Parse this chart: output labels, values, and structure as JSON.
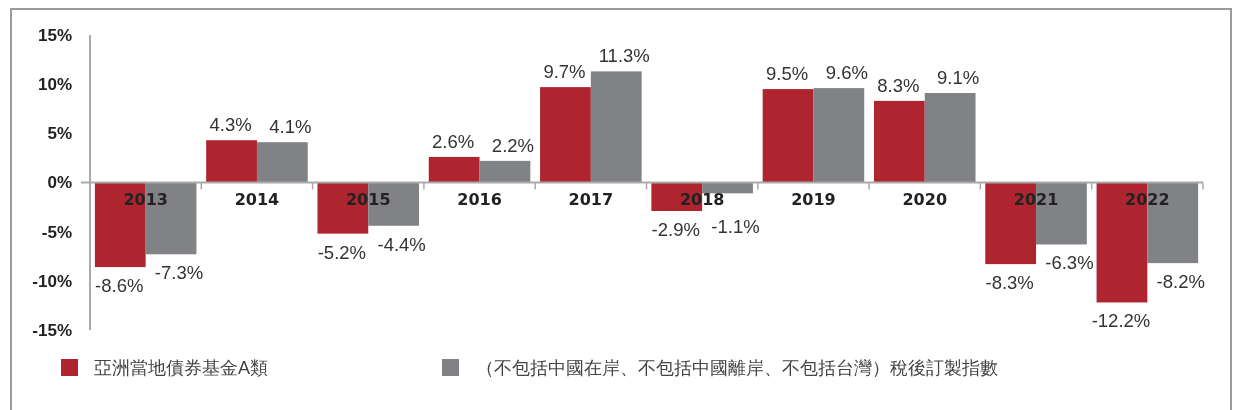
{
  "chart_data": {
    "type": "bar",
    "categories": [
      "2013",
      "2014",
      "2015",
      "2016",
      "2017",
      "2018",
      "2019",
      "2020",
      "2021",
      "2022"
    ],
    "series": [
      {
        "name": "亞洲當地債券基金A類",
        "color": "#ae2530",
        "values": [
          -8.6,
          4.3,
          -5.2,
          2.6,
          9.7,
          -2.9,
          9.5,
          8.3,
          -8.3,
          -12.2
        ],
        "value_labels": [
          "-8.6%",
          "4.3%",
          "-5.2%",
          "2.6%",
          "9.7%",
          "-2.9%",
          "9.5%",
          "8.3%",
          "-8.3%",
          "-12.2%"
        ]
      },
      {
        "name": "（不包括中國在岸、不包括中國離岸、不包括台灣）稅後訂製指數",
        "color": "#808285",
        "values": [
          -7.3,
          4.1,
          -4.4,
          2.2,
          11.3,
          -1.1,
          9.6,
          9.1,
          -6.3,
          -8.2
        ],
        "value_labels": [
          "-7.3%",
          "4.1%",
          "-4.4%",
          "2.2%",
          "11.3%",
          "-1.1%",
          "9.6%",
          "9.1%",
          "-6.3%",
          "-8.2%"
        ]
      }
    ],
    "ylim": [
      -15,
      15
    ],
    "yticks": [
      {
        "value": 15,
        "label": "15%"
      },
      {
        "value": 10,
        "label": "10%"
      },
      {
        "value": 5,
        "label": "5%"
      },
      {
        "value": 0,
        "label": "0%"
      },
      {
        "value": -5,
        "label": "-5%"
      },
      {
        "value": -10,
        "label": "-10%"
      },
      {
        "value": -15,
        "label": "-15%"
      }
    ],
    "legend": "bottom"
  }
}
